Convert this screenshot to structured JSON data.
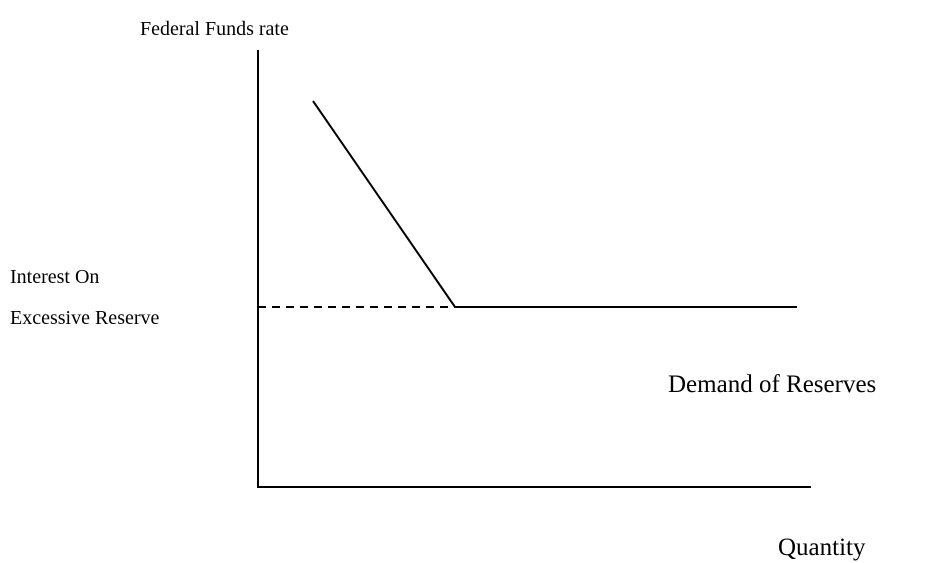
{
  "axes": {
    "y_label": "Federal Funds rate",
    "x_label": "Quantity"
  },
  "annotations": {
    "rate_level": [
      "Interest On",
      "Excessive Reserve"
    ],
    "curve_label": "Demand of Reserves"
  }
}
